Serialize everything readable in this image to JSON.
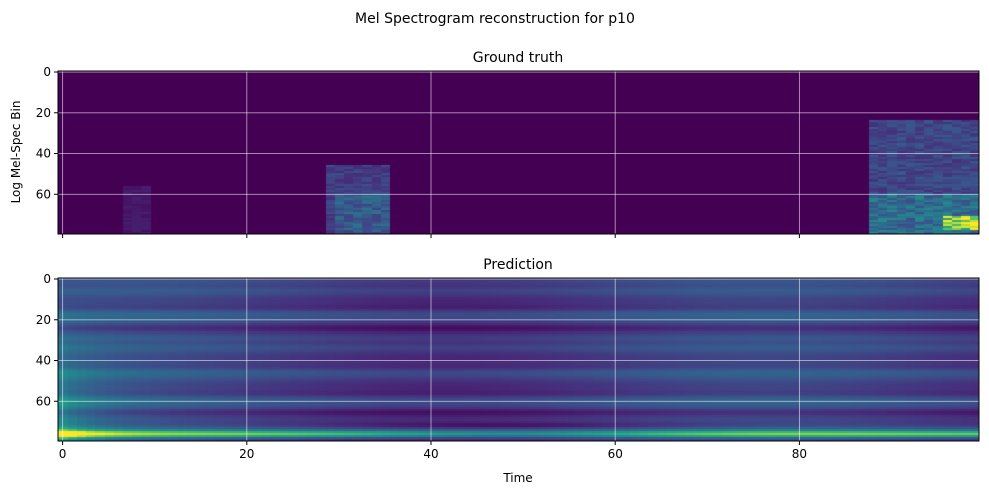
{
  "figure": {
    "suptitle": "Mel Spectrogram reconstruction for p10"
  },
  "chart_data": [
    {
      "type": "heatmap",
      "title": "Ground truth",
      "xlabel": "",
      "ylabel": "Log Mel-Spec Bin",
      "xlim": [
        -0.5,
        99.5
      ],
      "ylim": [
        79.5,
        -0.5
      ],
      "xticks": [
        0,
        20,
        40,
        60,
        80
      ],
      "xtick_labels_visible": false,
      "yticks": [
        0,
        20,
        40,
        60
      ],
      "grid": true,
      "colormap": "viridis",
      "n_time": 100,
      "n_bins": 80,
      "regions": [
        {
          "label": "faint segment",
          "t0": 7,
          "t1": 10,
          "b0": 56,
          "b1": 80,
          "level": 0.08
        },
        {
          "label": "speech segment 1",
          "t0": 29,
          "t1": 36,
          "b0": 46,
          "b1": 80,
          "level": 0.22
        },
        {
          "label": "speech segment 1 core",
          "t0": 30,
          "t1": 36,
          "b0": 60,
          "b1": 79,
          "level": 0.35
        },
        {
          "label": "speech segment 2",
          "t0": 88,
          "t1": 100,
          "b0": 24,
          "b1": 80,
          "level": 0.25
        },
        {
          "label": "speech segment 2 low",
          "t0": 88,
          "t1": 100,
          "b0": 60,
          "b1": 80,
          "level": 0.42
        },
        {
          "label": "speech segment 2 peak",
          "t0": 96,
          "t1": 100,
          "b0": 71,
          "b1": 78,
          "level": 1.0
        }
      ]
    },
    {
      "type": "heatmap",
      "title": "Prediction",
      "xlabel": "Time",
      "ylabel": "",
      "xlim": [
        -0.5,
        99.5
      ],
      "ylim": [
        79.5,
        -0.5
      ],
      "xticks": [
        0,
        20,
        40,
        60,
        80
      ],
      "yticks": [
        0,
        20,
        40,
        60
      ],
      "grid": true,
      "colormap": "viridis",
      "n_time": 100,
      "n_bins": 80,
      "dark_bands": [
        3,
        14,
        24,
        31,
        43,
        56,
        65,
        71
      ],
      "bright_band": {
        "bin_center": 76,
        "peak_time": 0,
        "peak_level": 0.98,
        "mid_level": 0.55
      }
    }
  ]
}
